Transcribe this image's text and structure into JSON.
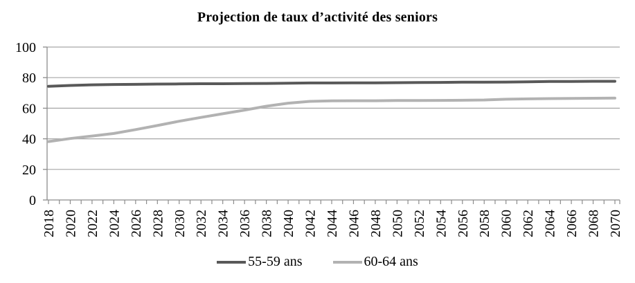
{
  "chart_data": {
    "type": "line",
    "title": "Projection de taux d’activité des seniors",
    "x_labels": [
      "2018",
      "2020",
      "2022",
      "2024",
      "2026",
      "2028",
      "2030",
      "2032",
      "2034",
      "2036",
      "2038",
      "2040",
      "2042",
      "2044",
      "2046",
      "2048",
      "2050",
      "2052",
      "2054",
      "2056",
      "2058",
      "2060",
      "2062",
      "2064",
      "2066",
      "2068",
      "2070"
    ],
    "series": [
      {
        "name": "55-59 ans",
        "color": "#595959",
        "values": [
          74.3,
          74.9,
          75.3,
          75.5,
          75.6,
          75.8,
          75.9,
          76.0,
          76.0,
          76.1,
          76.2,
          76.4,
          76.5,
          76.5,
          76.6,
          76.6,
          76.7,
          76.8,
          76.9,
          77.0,
          77.0,
          77.1,
          77.3,
          77.5,
          77.5,
          77.6,
          77.6
        ]
      },
      {
        "name": "60-64 ans",
        "color": "#b2b2b2",
        "values": [
          38.2,
          40.2,
          41.8,
          43.5,
          46.0,
          48.7,
          51.5,
          54.0,
          56.4,
          58.8,
          61.3,
          63.3,
          64.5,
          64.8,
          64.9,
          64.9,
          65.0,
          65.0,
          65.1,
          65.2,
          65.4,
          65.9,
          66.1,
          66.3,
          66.4,
          66.5,
          66.6
        ]
      }
    ],
    "ylim": [
      0,
      100
    ],
    "ytick_step": 20,
    "ytick_labels": [
      "0",
      "20",
      "40",
      "60",
      "80",
      "100"
    ],
    "grid": "horizontal",
    "grid_color": "#a6a6a6",
    "axis_color": "#8c8c8c",
    "legend_position": "bottom",
    "x_minor_ticks": "yearly"
  }
}
